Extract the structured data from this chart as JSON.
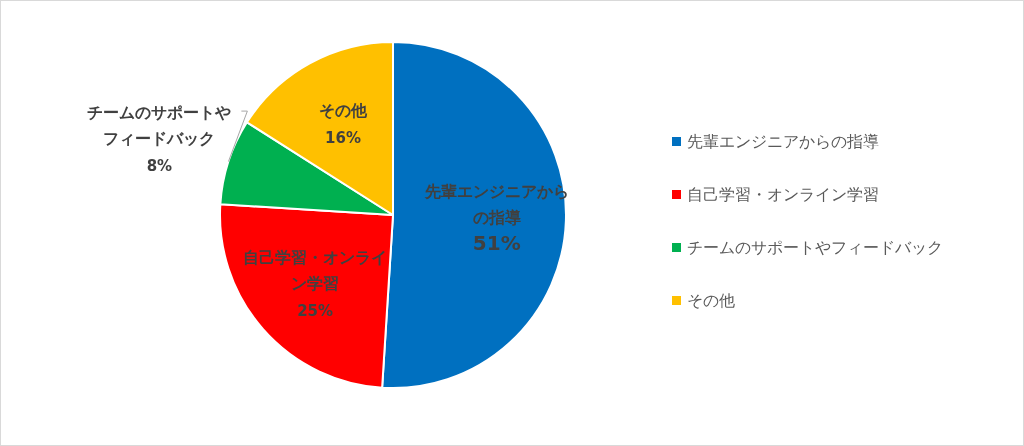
{
  "chart_data": {
    "type": "pie",
    "categories": [
      "先輩エンジニアからの指導",
      "自己学習・オンライン学習",
      "チームのサポートやフィードバック",
      "その他"
    ],
    "values": [
      51,
      25,
      8,
      16
    ],
    "colors": [
      "#0070c0",
      "#ff0000",
      "#00b050",
      "#ffc000"
    ],
    "value_labels": [
      "51%",
      "25%",
      "8%",
      "16%"
    ],
    "legend": "right"
  }
}
